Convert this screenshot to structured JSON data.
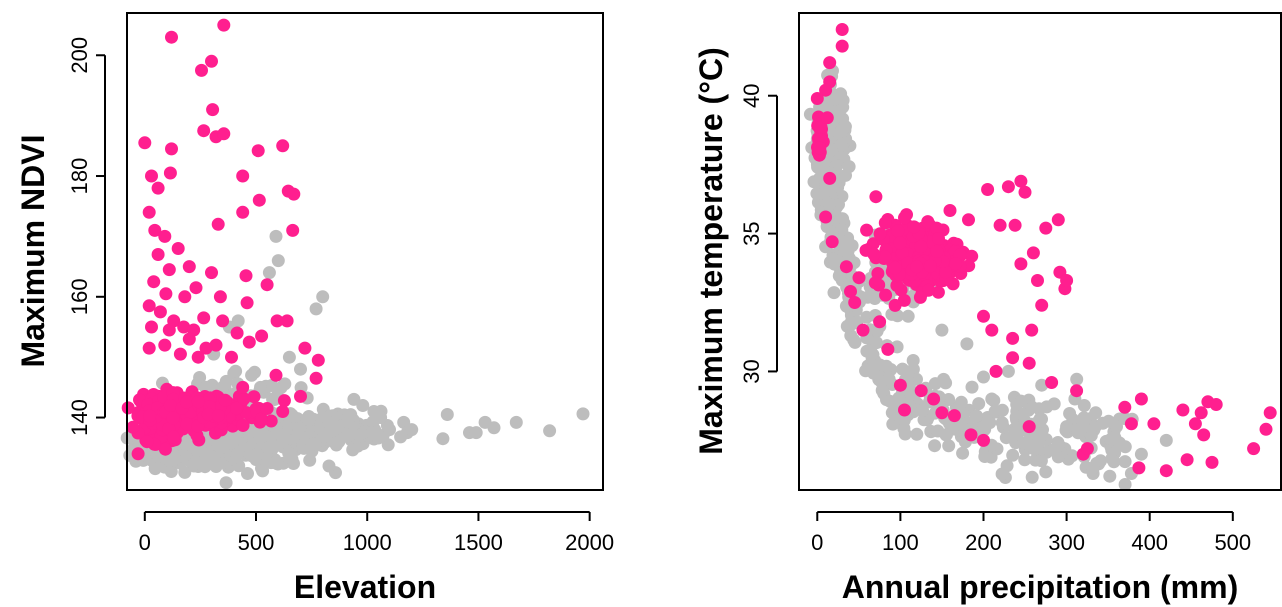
{
  "colors": {
    "background": "#bdbdbd",
    "highlight": "#ff1f8f"
  },
  "chart_data": [
    {
      "type": "scatter",
      "xlabel": "Elevation",
      "ylabel": "Maximum NDVI",
      "xlim": [
        -80,
        2060
      ],
      "ylim": [
        128,
        207
      ],
      "xticks": [
        0,
        500,
        1000,
        1500,
        2000
      ],
      "yticks": [
        140,
        160,
        180,
        200
      ],
      "grid": false,
      "series": [
        {
          "color": "#bdbdbd",
          "clusters": [
            {
              "x_center": 150,
              "y_center": 135,
              "x_spread": 200,
              "y_spread": 3,
              "count": 260
            },
            {
              "x_center": 520,
              "y_center": 136,
              "x_spread": 300,
              "y_spread": 4,
              "count": 260
            },
            {
              "x_center": 880,
              "y_center": 138,
              "x_spread": 180,
              "y_spread": 3,
              "count": 130
            },
            {
              "x_center": 420,
              "y_center": 143,
              "x_spread": 260,
              "y_spread": 5,
              "count": 70
            }
          ],
          "points": [
            [
              1340,
              136.5
            ],
            [
              1360,
              140.5
            ],
            [
              1460,
              137.5
            ],
            [
              1490,
              137.5
            ],
            [
              1530,
              139.2
            ],
            [
              1570,
              138.3
            ],
            [
              1670,
              139.2
            ],
            [
              1820,
              137.8
            ],
            [
              1970,
              140.6
            ],
            [
              1100,
              138.0
            ],
            [
              1150,
              136.8
            ],
            [
              1180,
              137.5
            ],
            [
              1060,
              140.0
            ],
            [
              800,
              160.0
            ],
            [
              770,
              158.0
            ],
            [
              590,
              170.0
            ],
            [
              560,
              164.0
            ],
            [
              420,
              156.0
            ],
            [
              380,
              155.0
            ],
            [
              700,
              148.0
            ],
            [
              600,
              166.0
            ],
            [
              520,
              145.0
            ],
            [
              480,
              147.0
            ],
            [
              650,
              150.0
            ],
            [
              310,
              150.5
            ],
            [
              350,
              145.0
            ],
            [
              1200,
              138.0
            ],
            [
              1030,
              141.0
            ],
            [
              980,
              142.0
            ],
            [
              940,
              143.0
            ]
          ]
        },
        {
          "color": "#ff1f8f",
          "clusters": [
            {
              "x_center": 70,
              "y_center": 140,
              "x_spread": 90,
              "y_spread": 4,
              "count": 220
            },
            {
              "x_center": 300,
              "y_center": 141,
              "x_spread": 250,
              "y_spread": 3,
              "count": 140
            }
          ],
          "points": [
            [
              355,
              205.0
            ],
            [
              120,
              203.0
            ],
            [
              300,
              199.0
            ],
            [
              255,
              197.5
            ],
            [
              305,
              191.0
            ],
            [
              265,
              187.5
            ],
            [
              320,
              186.5
            ],
            [
              355,
              187.0
            ],
            [
              0,
              185.5
            ],
            [
              120,
              184.5
            ],
            [
              440,
              180.0
            ],
            [
              620,
              185.0
            ],
            [
              510,
              184.2
            ],
            [
              30,
              180.0
            ],
            [
              60,
              178.0
            ],
            [
              115,
              180.5
            ],
            [
              645,
              177.5
            ],
            [
              670,
              177.0
            ],
            [
              515,
              176.0
            ],
            [
              440,
              174.0
            ],
            [
              330,
              172.0
            ],
            [
              665,
              171.0
            ],
            [
              20,
              174.0
            ],
            [
              45,
              171.0
            ],
            [
              90,
              170.0
            ],
            [
              150,
              168.0
            ],
            [
              60,
              167.0
            ],
            [
              200,
              165.0
            ],
            [
              110,
              164.5
            ],
            [
              300,
              164.0
            ],
            [
              455,
              163.5
            ],
            [
              550,
              162.0
            ],
            [
              40,
              162.5
            ],
            [
              230,
              161.5
            ],
            [
              95,
              160.5
            ],
            [
              180,
              160.0
            ],
            [
              340,
              160.0
            ],
            [
              460,
              159.0
            ],
            [
              20,
              158.5
            ],
            [
              70,
              157.5
            ],
            [
              130,
              156.0
            ],
            [
              265,
              156.5
            ],
            [
              350,
              156.0
            ],
            [
              595,
              156.0
            ],
            [
              640,
              156.0
            ],
            [
              30,
              155.0
            ],
            [
              175,
              155.0
            ],
            [
              220,
              154.5
            ],
            [
              415,
              154.0
            ],
            [
              110,
              154.5
            ],
            [
              200,
              153.0
            ],
            [
              90,
              152.0
            ],
            [
              320,
              152.0
            ],
            [
              525,
              153.5
            ],
            [
              470,
              152.5
            ],
            [
              20,
              151.5
            ],
            [
              160,
              150.5
            ],
            [
              240,
              150.0
            ],
            [
              275,
              151.5
            ],
            [
              390,
              150.0
            ],
            [
              720,
              151.5
            ],
            [
              780,
              149.5
            ],
            [
              770,
              146.5
            ],
            [
              700,
              143.5
            ],
            [
              620,
              141.0
            ],
            [
              550,
              141.5
            ],
            [
              -30,
              134.0
            ],
            [
              10,
              136.0
            ],
            [
              440,
              145.0
            ],
            [
              590,
              147.0
            ]
          ]
        }
      ]
    },
    {
      "type": "scatter",
      "xlabel": "Annual precipitation (mm)",
      "ylabel": "Maximum temperature (°C)",
      "xlim": [
        -22,
        558
      ],
      "ylim": [
        25.7,
        43.0
      ],
      "xticks": [
        0,
        100,
        200,
        300,
        400,
        500
      ],
      "yticks": [
        30,
        35,
        40
      ],
      "grid": false,
      "series": [
        {
          "color": "#bdbdbd",
          "curve": {
            "x_start": 2,
            "x_end": 380,
            "count": 480,
            "note_free": true
          },
          "clusters": [
            {
              "x_center": 20,
              "y_center": 38.5,
              "x_spread": 14,
              "y_spread": 2.0,
              "count": 120
            },
            {
              "x_center": 90,
              "y_center": 33.5,
              "x_spread": 35,
              "y_spread": 1.2,
              "count": 70
            }
          ],
          "points": [
            [
              352,
              26.2
            ],
            [
              378,
              26.3
            ],
            [
              332,
              26.5
            ],
            [
              290,
              26.9
            ],
            [
              248,
              27.4
            ],
            [
              290,
              27.3
            ],
            [
              268,
              28.2
            ],
            [
              335,
              28.5
            ],
            [
              360,
              28.0
            ],
            [
              390,
              27.0
            ],
            [
              310,
              29.0
            ],
            [
              210,
              29.0
            ],
            [
              270,
              29.5
            ],
            [
              230,
              30.0
            ],
            [
              180,
              31.0
            ],
            [
              150,
              31.5
            ],
            [
              200,
              29.8
            ],
            [
              240,
              28.8
            ],
            [
              420,
              27.5
            ],
            [
              300,
              28.0
            ]
          ]
        },
        {
          "color": "#ff1f8f",
          "clusters": [
            {
              "x_center": 120,
              "y_center": 34.2,
              "x_spread": 50,
              "y_spread": 1.2,
              "count": 260
            },
            {
              "x_center": 3,
              "y_center": 38.5,
              "x_spread": 3,
              "y_spread": 0.8,
              "count": 25
            }
          ],
          "points": [
            [
              30,
              42.4
            ],
            [
              30,
              41.8
            ],
            [
              15,
              41.2
            ],
            [
              15,
              40.5
            ],
            [
              10,
              40.2
            ],
            [
              0,
              39.9
            ],
            [
              12,
              39.2
            ],
            [
              15,
              37.0
            ],
            [
              10,
              35.6
            ],
            [
              18,
              34.7
            ],
            [
              35,
              33.8
            ],
            [
              40,
              32.9
            ],
            [
              45,
              32.5
            ],
            [
              55,
              31.5
            ],
            [
              75,
              31.8
            ],
            [
              85,
              30.8
            ],
            [
              100,
              29.5
            ],
            [
              105,
              28.6
            ],
            [
              125,
              29.3
            ],
            [
              140,
              29.0
            ],
            [
              150,
              28.5
            ],
            [
              165,
              28.4
            ],
            [
              185,
              27.7
            ],
            [
              200,
              27.5
            ],
            [
              215,
              30.0
            ],
            [
              235,
              30.5
            ],
            [
              255,
              30.3
            ],
            [
              255,
              28.0
            ],
            [
              282,
              29.6
            ],
            [
              312,
              29.3
            ],
            [
              320,
              27.0
            ],
            [
              325,
              27.2
            ],
            [
              370,
              28.7
            ],
            [
              378,
              28.1
            ],
            [
              387,
              26.5
            ],
            [
              390,
              29.0
            ],
            [
              405,
              28.1
            ],
            [
              420,
              26.4
            ],
            [
              440,
              28.6
            ],
            [
              445,
              26.8
            ],
            [
              455,
              28.1
            ],
            [
              462,
              28.5
            ],
            [
              465,
              27.7
            ],
            [
              470,
              28.9
            ],
            [
              475,
              26.7
            ],
            [
              480,
              28.8
            ],
            [
              525,
              27.2
            ],
            [
              540,
              27.9
            ],
            [
              545,
              28.5
            ],
            [
              245,
              36.9
            ],
            [
              230,
              36.7
            ],
            [
              250,
              36.5
            ],
            [
              275,
              35.2
            ],
            [
              290,
              35.5
            ],
            [
              292,
              33.6
            ],
            [
              298,
              33.0
            ],
            [
              300,
              33.3
            ],
            [
              270,
              32.4
            ],
            [
              258,
              31.5
            ],
            [
              235,
              31.2
            ],
            [
              210,
              31.5
            ],
            [
              200,
              32.0
            ],
            [
              220,
              35.3
            ],
            [
              238,
              35.3
            ],
            [
              260,
              34.3
            ],
            [
              265,
              33.3
            ],
            [
              245,
              33.9
            ],
            [
              205,
              36.6
            ],
            [
              182,
              35.5
            ]
          ]
        }
      ]
    }
  ]
}
